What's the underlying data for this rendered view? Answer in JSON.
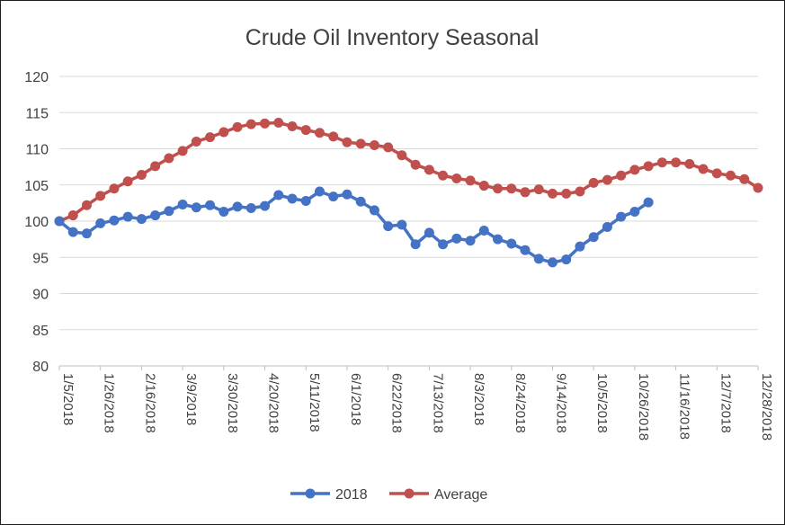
{
  "chart_data": {
    "type": "line",
    "title": "Crude Oil Inventory Seasonal",
    "xlabel": "",
    "ylabel": "",
    "ylim": [
      80,
      120
    ],
    "yticks": [
      80,
      85,
      90,
      95,
      100,
      105,
      110,
      115,
      120
    ],
    "x_tick_labels": [
      "1/5/2018",
      "1/26/2018",
      "2/16/2018",
      "3/9/2018",
      "3/30/2018",
      "4/20/2018",
      "5/11/2018",
      "6/1/2018",
      "6/22/2018",
      "7/13/2018",
      "8/3/2018",
      "8/24/2018",
      "9/14/2018",
      "10/5/2018",
      "10/26/2018",
      "11/16/2018",
      "12/7/2018",
      "12/28/2018"
    ],
    "x_points": 52,
    "grid": "horizontal",
    "legend_position": "bottom",
    "series": [
      {
        "name": "2018",
        "color": "#4472c4",
        "values": [
          100.0,
          98.5,
          98.3,
          99.7,
          100.1,
          100.6,
          100.3,
          100.8,
          101.4,
          102.3,
          101.9,
          102.2,
          101.3,
          102.0,
          101.8,
          102.1,
          103.6,
          103.1,
          102.8,
          104.1,
          103.4,
          103.7,
          102.7,
          101.5,
          99.3,
          99.5,
          96.8,
          98.4,
          96.8,
          97.6,
          97.3,
          98.7,
          97.5,
          96.9,
          96.0,
          94.8,
          94.3,
          94.7,
          96.5,
          97.8,
          99.2,
          100.6,
          101.3,
          102.6
        ]
      },
      {
        "name": "Average",
        "color": "#c0504d",
        "values": [
          100.0,
          100.8,
          102.2,
          103.5,
          104.5,
          105.5,
          106.4,
          107.6,
          108.7,
          109.7,
          111.0,
          111.6,
          112.3,
          113.0,
          113.4,
          113.5,
          113.6,
          113.1,
          112.6,
          112.2,
          111.7,
          110.9,
          110.7,
          110.5,
          110.2,
          109.1,
          107.8,
          107.1,
          106.3,
          105.9,
          105.6,
          104.9,
          104.5,
          104.5,
          104.0,
          104.4,
          103.8,
          103.8,
          104.1,
          105.3,
          105.7,
          106.3,
          107.1,
          107.6,
          108.1,
          108.1,
          107.9,
          107.2,
          106.6,
          106.3,
          105.8,
          104.6
        ]
      }
    ]
  }
}
